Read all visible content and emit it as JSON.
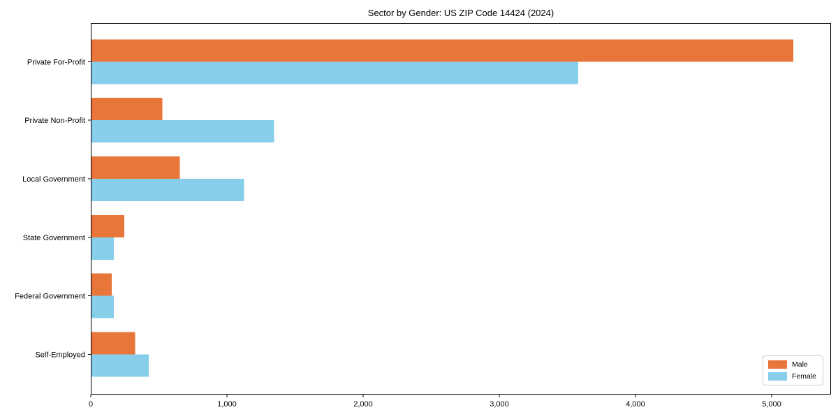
{
  "figure": {
    "background": "#ffffff"
  },
  "chart_data": {
    "type": "bar",
    "orientation": "horizontal",
    "title": "Sector by Gender: US ZIP Code 14424 (2024)",
    "categories": [
      "Private For-Profit",
      "Private Non-Profit",
      "Local Government",
      "State Government",
      "Federal Government",
      "Self-Employed"
    ],
    "series": [
      {
        "name": "Male",
        "color": "#e8763b",
        "values": [
          5160,
          525,
          655,
          245,
          155,
          325
        ]
      },
      {
        "name": "Female",
        "color": "#87ceeb",
        "values": [
          3580,
          1345,
          1125,
          170,
          170,
          425
        ]
      }
    ],
    "xlabel": "",
    "ylabel": "",
    "xlim": [
      0,
      5436
    ],
    "x_ticks": {
      "values": [
        0,
        1000,
        2000,
        3000,
        4000,
        5000
      ],
      "labels": [
        "0",
        "1,000",
        "2,000",
        "3,000",
        "4,000",
        "5,000"
      ]
    },
    "grid": false,
    "legend": {
      "position": "lower right"
    },
    "axis_color": "#000000",
    "text_color": "#000000"
  }
}
